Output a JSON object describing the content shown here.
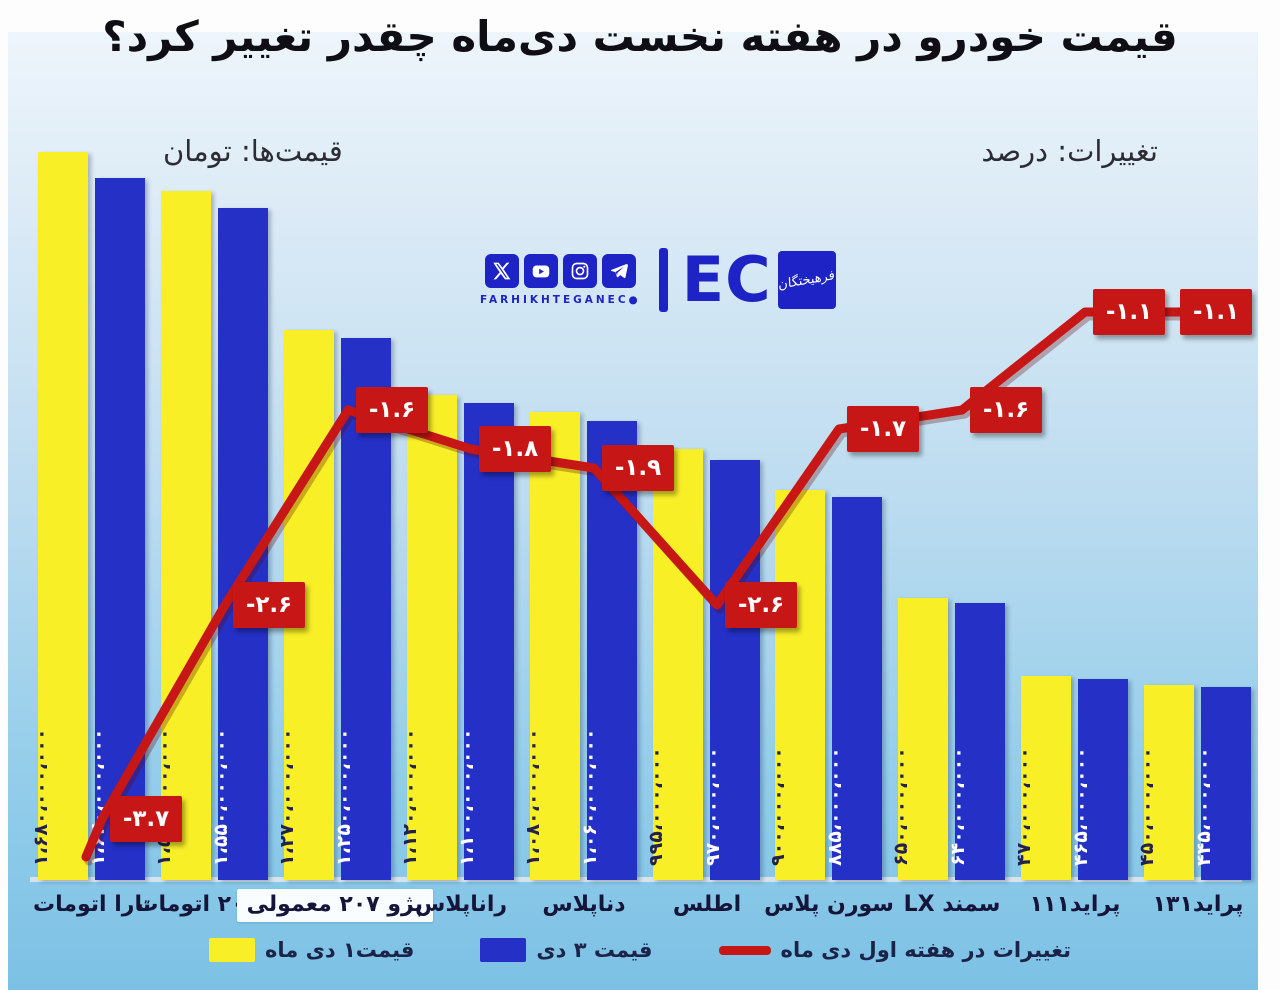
{
  "page": {
    "title": "قیمت خودرو در هفته نخست دی‌ماه چقدر تغییر کرد؟",
    "unit_left_label": "قیمت‌ها: تومان",
    "unit_right_label": "تغییرات: درصد"
  },
  "logo": {
    "wordmark": "FARHIKHTEGANEC●",
    "eco_text": "EC",
    "eco_square_text": "فرهیختگان",
    "brand_color": "#1d23c4"
  },
  "legend": [
    {
      "name": "price-dey1",
      "label": "قیمت۱ دی ماه",
      "swatch": "yellow"
    },
    {
      "name": "price-dey3",
      "label": "قیمت ۳ دی",
      "swatch": "blue"
    },
    {
      "name": "weekly-change",
      "label": "تغییرات در هفته اول دی ماه",
      "swatch": "red-line"
    }
  ],
  "colors": {
    "bar_day1": "#f8ef26",
    "bar_day3": "#2430c6",
    "change_line": "#c61616",
    "background_top": "#eef5fb",
    "background_bottom": "#7cc1e5"
  },
  "chart_data": {
    "type": "bar+line",
    "title": "قیمت خودرو در هفته نخست دی‌ماه چقدر تغییر کرد؟",
    "units": {
      "bars": "تومان",
      "line": "درصد"
    },
    "legend_position": "bottom",
    "grid": false,
    "categories": [
      "تارا اتومات",
      "پژو۲۰۷ اتومات",
      "پژو ۲۰۷ معمولی",
      "راناپلاس",
      "دناپلاس",
      "اطلس",
      "سورن پلاس",
      "سمند LX",
      "پراید۱۱۱",
      "پراید۱۳۱"
    ],
    "highlighted_category": "پژو ۲۰۷ معمولی",
    "series": [
      {
        "name": "قیمت۱ دی ماه",
        "type": "bar",
        "color": "#f8ef26",
        "values": [
          1680000000,
          1590000000,
          1270000000,
          1120000000,
          1080000000,
          995000000,
          900000000,
          650000000,
          470000000,
          450000000
        ],
        "value_labels": [
          "۱،۶۸۰،۰۰۰،۰۰۰",
          "۱،۵۹۰،۰۰۰،۰۰۰",
          "۱،۲۷۰،۰۰۰،۰۰۰",
          "۱،۱۲۰،۰۰۰،۰۰۰",
          "۱،۰۸۰،۰۰۰،۰۰۰",
          "۹۹۵،۰۰۰،۰۰۰",
          "۹۰۰،۰۰۰،۰۰۰",
          "۶۵۰،۰۰۰،۰۰۰",
          "۴۷۰،۰۰۰،۰۰۰",
          "۴۵۰،۰۰۰،۰۰۰"
        ]
      },
      {
        "name": "قیمت ۳ دی",
        "type": "bar",
        "color": "#2430c6",
        "values": [
          1620000000,
          1550000000,
          1250000000,
          1100000000,
          1060000000,
          970000000,
          885000000,
          640000000,
          465000000,
          445000000
        ],
        "value_labels": [
          "۱،۶۲۰،۰۰۰،۰۰۰",
          "۱،۵۵۰،۰۰۰،۰۰۰",
          "۱،۲۵۰،۰۰۰،۰۰۰",
          "۱،۱۰۰،۰۰۰،۰۰۰",
          "۱،۰۶۰،۰۰۰،۰۰۰",
          "۹۷۰،۰۰۰،۰۰۰",
          "۸۸۵،۰۰۰،۰۰۰",
          "۶۴۰،۰۰۰،۰۰۰",
          "۴۶۵،۰۰۰،۰۰۰",
          "۴۴۵،۰۰۰،۰۰۰"
        ]
      },
      {
        "name": "تغییرات در هفته اول دی ماه",
        "type": "line",
        "color": "#c61616",
        "values": [
          -3.7,
          -2.6,
          -1.6,
          -1.8,
          -1.9,
          -2.6,
          -1.7,
          -1.6,
          -1.1,
          -1.1
        ],
        "value_labels": [
          "-۳.۷",
          "-۲.۶",
          "-۱.۶",
          "-۱.۸",
          "-۱.۹",
          "-۲.۶",
          "-۱.۷",
          "-۱.۶",
          "-۱.۱",
          "-۱.۱"
        ]
      }
    ]
  }
}
